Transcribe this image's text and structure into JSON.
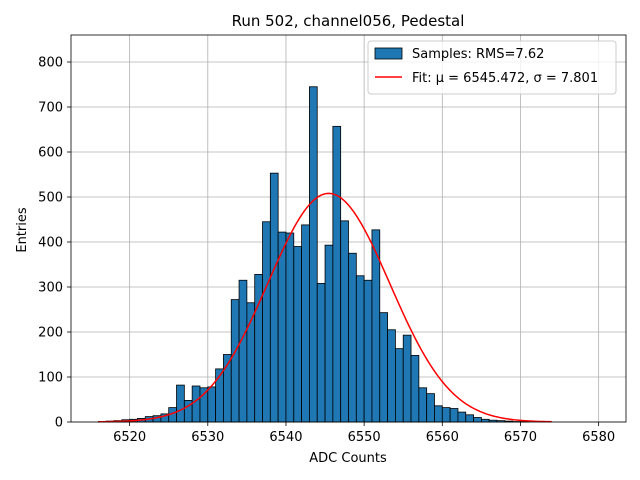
{
  "chart_data": {
    "type": "bar",
    "title": "Run 502, channel056, Pedestal",
    "xlabel": "ADC Counts",
    "ylabel": "Entries",
    "xlim": [
      6512.5,
      6583.5
    ],
    "ylim": [
      0,
      860
    ],
    "xticks": [
      6520,
      6530,
      6540,
      6550,
      6560,
      6570,
      6580
    ],
    "yticks": [
      0,
      100,
      200,
      300,
      400,
      500,
      600,
      700,
      800
    ],
    "grid": true,
    "legend_position": "top-right",
    "colors": {
      "bars": "#1f77b4",
      "bar_edge": "#000000",
      "fit": "#ff0000",
      "grid": "#b0b0b0"
    },
    "histogram": {
      "name": "Samples: RMS=7.62",
      "bin_start": 6516,
      "bin_width": 1,
      "counts": [
        1,
        2,
        3,
        5,
        6,
        8,
        12,
        14,
        18,
        32,
        82,
        48,
        80,
        76,
        78,
        118,
        150,
        272,
        315,
        265,
        328,
        445,
        553,
        422,
        420,
        390,
        438,
        745,
        308,
        393,
        657,
        447,
        375,
        325,
        315,
        427,
        243,
        205,
        163,
        193,
        148,
        76,
        63,
        36,
        32,
        30,
        22,
        16,
        10,
        6,
        4,
        3,
        2,
        1,
        1,
        0,
        0,
        0
      ]
    },
    "fit": {
      "name": "Fit: μ = 6545.472, σ = 7.801",
      "mu": 6545.472,
      "sigma": 7.801,
      "amplitude": 508,
      "x_range": [
        6516,
        6574
      ]
    }
  }
}
